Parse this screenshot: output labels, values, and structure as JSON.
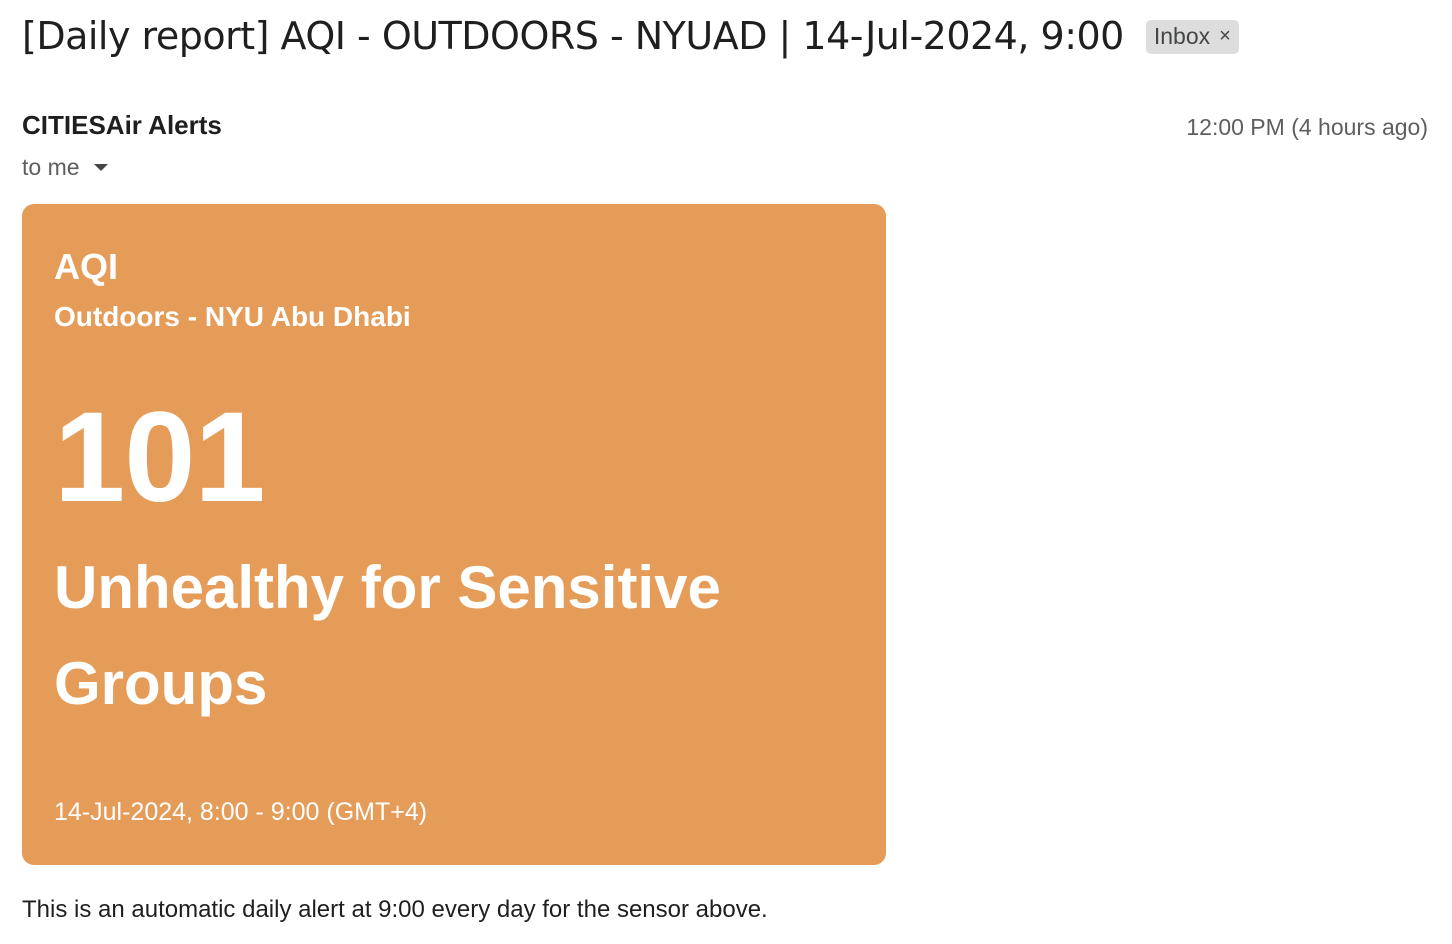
{
  "email": {
    "subject": "[Daily report] AQI - OUTDOORS - NYUAD | 14-Jul-2024, 9:00",
    "label": "Inbox",
    "label_close": "×",
    "sender": "CITIESAir Alerts",
    "recipient": "to me",
    "time": "12:00 PM (4 hours ago)"
  },
  "card": {
    "metric": "AQI",
    "location": "Outdoors - NYU Abu Dhabi",
    "value": "101",
    "category": "Unhealthy for Sensitive Groups",
    "period": "14-Jul-2024, 8:00 - 9:00 (GMT+4)",
    "color": "#e59c58"
  },
  "footer": "This is an automatic daily alert at 9:00 every day for the sensor above.",
  "icons": {
    "recipient_details": "caret-down-icon",
    "remove_label": "close-icon"
  }
}
